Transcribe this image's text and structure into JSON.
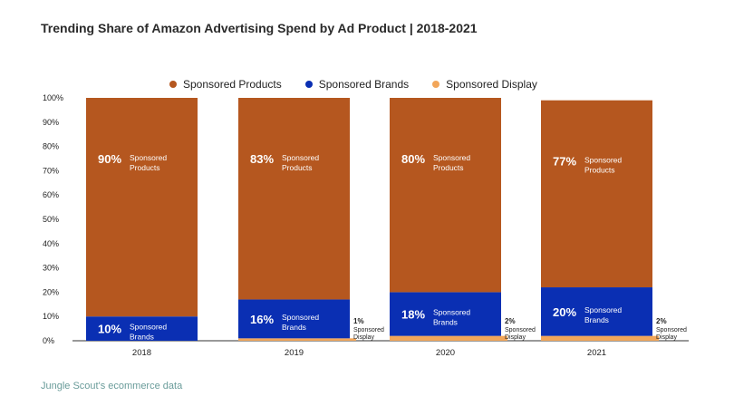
{
  "title": "Trending Share of Amazon Advertising Spend by Ad Product | 2018-2021",
  "source": "Jungle Scout's ecommerce data",
  "legend": [
    {
      "name": "Sponsored Products",
      "color": "#b5571f"
    },
    {
      "name": "Sponsored Brands",
      "color": "#0a2fb3"
    },
    {
      "name": "Sponsored Display",
      "color": "#f2a65a"
    }
  ],
  "chart_data": {
    "type": "bar",
    "stacked": true,
    "title": "Trending Share of Amazon Advertising Spend by Ad Product | 2018-2021",
    "categories": [
      "2018",
      "2019",
      "2020",
      "2021"
    ],
    "ylim": [
      0,
      100
    ],
    "yticks": [
      "0%",
      "10%",
      "20%",
      "30%",
      "40%",
      "50%",
      "60%",
      "70%",
      "80%",
      "90%",
      "100%"
    ],
    "series": [
      {
        "name": "Sponsored Display",
        "color": "#f2a65a",
        "values": [
          0,
          1,
          2,
          2
        ],
        "labels": [
          "",
          "1%",
          "2%",
          "2%"
        ],
        "label_text": [
          "Sponsored",
          "Display"
        ]
      },
      {
        "name": "Sponsored Brands",
        "color": "#0a2fb3",
        "values": [
          10,
          16,
          18,
          20
        ],
        "labels": [
          "10%",
          "16%",
          "18%",
          "20%"
        ],
        "label_text": [
          "Sponsored",
          "Brands"
        ]
      },
      {
        "name": "Sponsored Products",
        "color": "#b5571f",
        "values": [
          90,
          83,
          80,
          77
        ],
        "labels": [
          "90%",
          "83%",
          "80%",
          "77%"
        ],
        "label_text": [
          "Sponsored",
          "Products"
        ]
      }
    ]
  }
}
